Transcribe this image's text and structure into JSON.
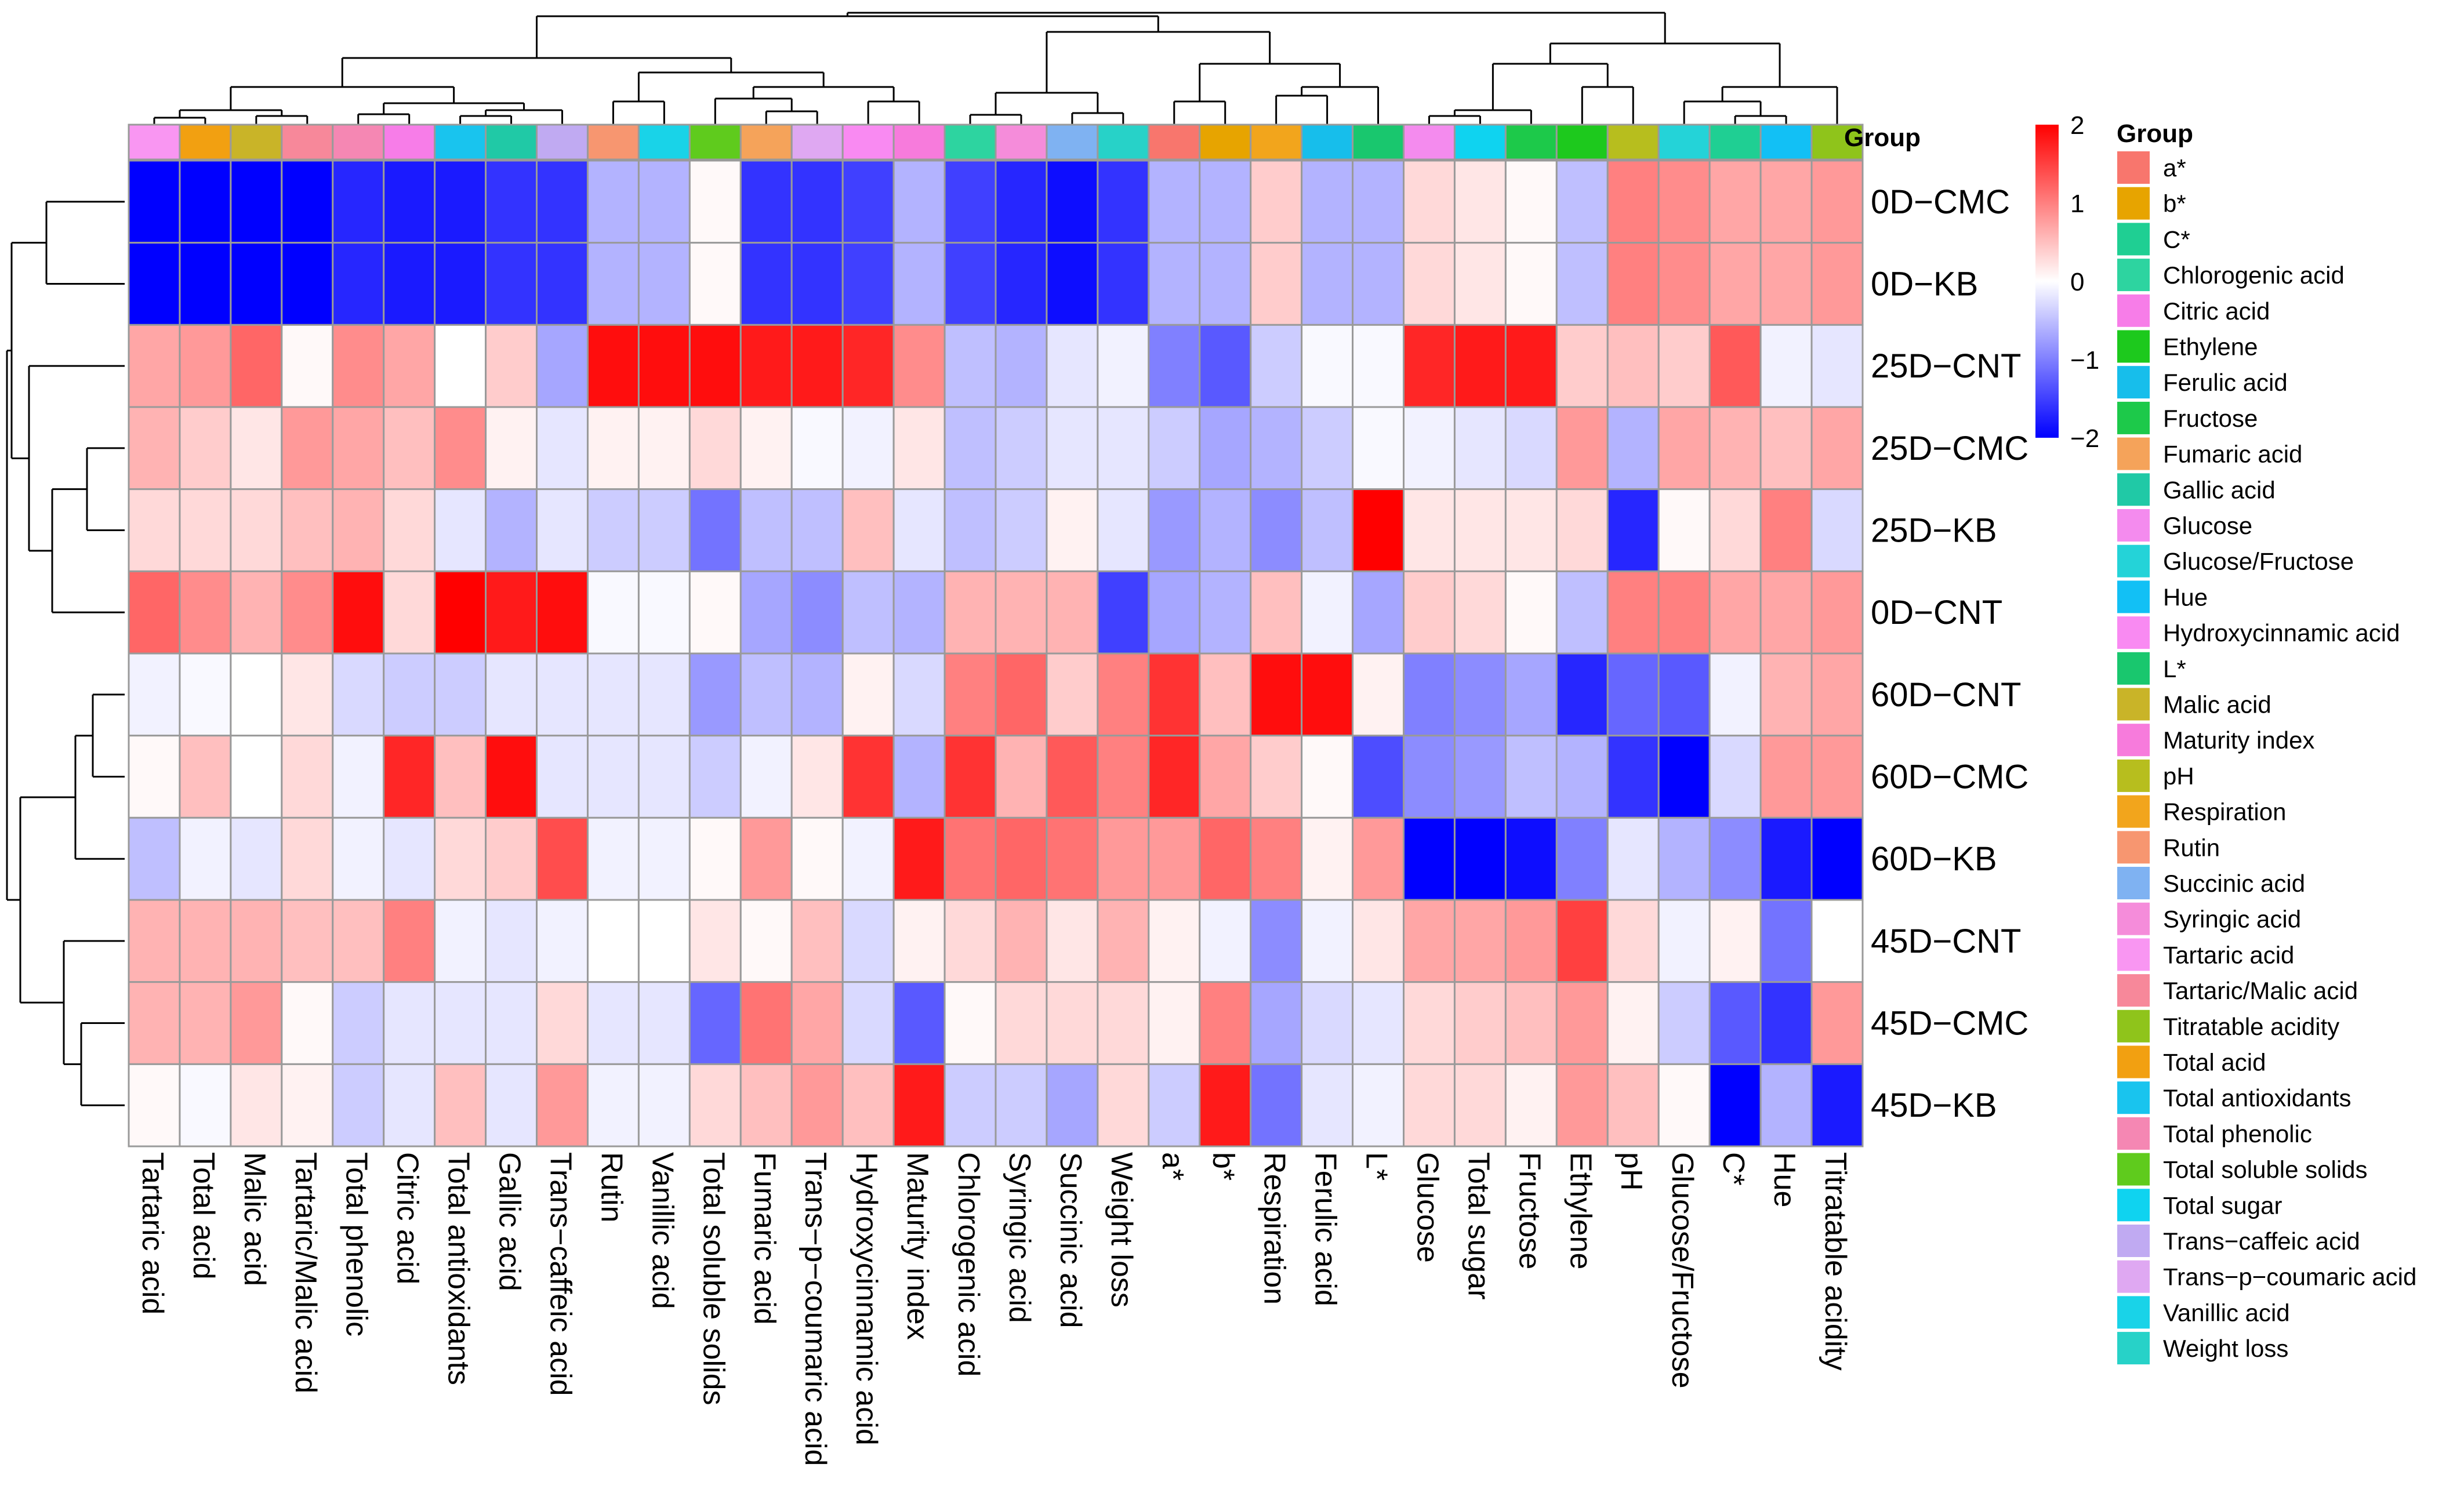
{
  "chart_data": {
    "type": "heatmap",
    "title": "",
    "annotation_title": "Group",
    "scale": {
      "range": [
        -2,
        2
      ],
      "ticks": [
        2,
        1,
        0,
        -1,
        -2
      ],
      "tick_labels": [
        "2",
        "1",
        "0",
        "−1",
        "−2"
      ],
      "colors": {
        "low": "#0000FF",
        "mid": "#FFFFFF",
        "high": "#FF0000"
      }
    },
    "rows": [
      "0D−CMC",
      "0D−KB",
      "25D−CNT",
      "25D−CMC",
      "25D−KB",
      "0D−CNT",
      "60D−CNT",
      "60D−CMC",
      "60D−KB",
      "45D−CNT",
      "45D−CMC",
      "45D−KB"
    ],
    "columns": [
      "Tartaric acid",
      "Total acid",
      "Malic acid",
      "Tartaric/Malic acid",
      "Total phenolic",
      "Citric acid",
      "Total antioxidants",
      "Gallic acid",
      "Trans−caffeic acid",
      "Rutin",
      "Vanillic acid",
      "Total soluble solids",
      "Fumaric acid",
      "Trans−p−coumaric acid",
      "Hydroxycinnamic acid",
      "Maturity index",
      "Chlorogenic acid",
      "Syringic acid",
      "Succinic acid",
      "Weight loss",
      "a*",
      "b*",
      "Respiration",
      "Ferulic acid",
      "L*",
      "Glucose",
      "Total sugar",
      "Fructose",
      "Ethylene",
      "pH",
      "Glucose/Fructose",
      "C*",
      "Hue",
      "Titratable acidity"
    ],
    "values": [
      [
        -2.0,
        -2.0,
        -2.0,
        -2.0,
        -1.7,
        -1.8,
        -1.8,
        -1.6,
        -1.6,
        -0.6,
        -0.6,
        0.05,
        -1.6,
        -1.6,
        -1.5,
        -0.6,
        -1.5,
        -1.7,
        -1.9,
        -1.6,
        -0.6,
        -0.6,
        0.4,
        -0.6,
        -0.6,
        0.3,
        0.2,
        0.05,
        -0.5,
        1.0,
        0.9,
        0.7,
        0.7,
        0.8
      ],
      [
        -2.0,
        -2.0,
        -2.0,
        -2.0,
        -1.7,
        -1.8,
        -1.8,
        -1.6,
        -1.6,
        -0.6,
        -0.6,
        0.05,
        -1.6,
        -1.6,
        -1.5,
        -0.6,
        -1.5,
        -1.7,
        -1.9,
        -1.6,
        -0.6,
        -0.6,
        0.4,
        -0.6,
        -0.6,
        0.3,
        0.2,
        0.05,
        -0.5,
        1.0,
        0.9,
        0.7,
        0.7,
        0.8
      ],
      [
        0.7,
        0.8,
        1.2,
        0.05,
        0.9,
        0.7,
        0.0,
        0.4,
        -0.7,
        1.9,
        1.9,
        1.9,
        1.8,
        1.8,
        1.7,
        0.9,
        -0.5,
        -0.6,
        -0.2,
        -0.1,
        -1.0,
        -1.3,
        -0.4,
        -0.05,
        -0.05,
        1.7,
        1.8,
        1.8,
        0.4,
        0.5,
        0.4,
        1.3,
        -0.1,
        -0.2
      ],
      [
        0.6,
        0.4,
        0.2,
        0.8,
        0.7,
        0.5,
        0.9,
        0.1,
        -0.2,
        0.1,
        0.1,
        0.3,
        0.1,
        -0.05,
        -0.1,
        0.2,
        -0.5,
        -0.4,
        -0.2,
        -0.2,
        -0.4,
        -0.7,
        -0.6,
        -0.4,
        -0.05,
        -0.1,
        -0.2,
        -0.3,
        0.8,
        -0.6,
        0.7,
        0.6,
        0.5,
        0.7
      ],
      [
        0.3,
        0.3,
        0.3,
        0.5,
        0.6,
        0.3,
        -0.2,
        -0.6,
        -0.2,
        -0.4,
        -0.4,
        -1.1,
        -0.5,
        -0.5,
        0.5,
        -0.2,
        -0.5,
        -0.4,
        0.1,
        -0.2,
        -0.8,
        -0.6,
        -0.9,
        -0.5,
        2.0,
        0.2,
        0.2,
        0.2,
        0.3,
        -1.7,
        0.05,
        0.3,
        1.0,
        -0.3
      ],
      [
        1.2,
        0.9,
        0.6,
        0.9,
        1.9,
        0.3,
        2.0,
        1.8,
        1.9,
        -0.05,
        -0.05,
        0.05,
        -0.7,
        -0.9,
        -0.5,
        -0.6,
        0.6,
        0.6,
        0.6,
        -1.5,
        -0.7,
        -0.6,
        0.5,
        -0.1,
        -0.7,
        0.4,
        0.3,
        0.05,
        -0.5,
        1.0,
        1.0,
        0.7,
        0.7,
        0.8
      ],
      [
        -0.1,
        -0.05,
        0.0,
        0.2,
        -0.3,
        -0.4,
        -0.4,
        -0.2,
        -0.2,
        -0.2,
        -0.2,
        -0.8,
        -0.5,
        -0.6,
        0.1,
        -0.3,
        1.0,
        1.2,
        0.4,
        1.0,
        1.6,
        0.5,
        1.9,
        1.9,
        0.1,
        -1.0,
        -0.9,
        -0.7,
        -1.7,
        -1.2,
        -1.3,
        -0.1,
        0.6,
        0.7
      ],
      [
        0.05,
        0.5,
        0.0,
        0.3,
        -0.1,
        1.7,
        0.5,
        1.9,
        -0.2,
        -0.2,
        -0.2,
        -0.4,
        -0.1,
        0.2,
        1.6,
        -0.6,
        1.6,
        0.6,
        1.3,
        1.0,
        1.7,
        0.7,
        0.4,
        0.05,
        -1.4,
        -0.9,
        -0.8,
        -0.5,
        -0.6,
        -1.6,
        -2.0,
        -0.3,
        0.8,
        0.8
      ],
      [
        -0.5,
        -0.1,
        -0.2,
        0.3,
        -0.1,
        -0.2,
        0.3,
        0.4,
        1.4,
        -0.1,
        -0.1,
        0.05,
        0.8,
        0.05,
        -0.1,
        1.8,
        1.1,
        1.2,
        1.1,
        0.8,
        0.8,
        1.2,
        1.0,
        0.1,
        0.8,
        -2.0,
        -2.0,
        -1.9,
        -1.0,
        -0.2,
        -0.6,
        -0.9,
        -1.8,
        -2.0
      ],
      [
        0.6,
        0.6,
        0.6,
        0.5,
        0.5,
        1.0,
        -0.1,
        -0.2,
        -0.1,
        0.0,
        0.0,
        0.2,
        0.05,
        0.5,
        -0.3,
        0.1,
        0.3,
        0.6,
        0.2,
        0.6,
        0.1,
        -0.1,
        -0.9,
        -0.1,
        0.2,
        0.7,
        0.7,
        0.8,
        1.5,
        0.3,
        -0.1,
        0.1,
        -1.1,
        0.0
      ],
      [
        0.6,
        0.6,
        0.8,
        0.05,
        -0.4,
        -0.2,
        -0.2,
        -0.2,
        0.3,
        -0.2,
        -0.2,
        -1.2,
        1.1,
        0.7,
        -0.3,
        -1.3,
        0.05,
        0.3,
        0.3,
        0.3,
        0.1,
        1.0,
        -0.7,
        -0.3,
        -0.2,
        0.3,
        0.4,
        0.5,
        0.8,
        0.1,
        -0.4,
        -1.3,
        -1.6,
        0.8
      ],
      [
        0.05,
        -0.05,
        0.2,
        0.1,
        -0.4,
        -0.2,
        0.5,
        -0.2,
        0.8,
        -0.1,
        -0.1,
        0.3,
        0.5,
        0.8,
        0.5,
        1.8,
        -0.4,
        -0.4,
        -0.7,
        0.3,
        -0.4,
        1.8,
        -1.1,
        -0.2,
        -0.1,
        0.3,
        0.3,
        0.1,
        0.8,
        0.5,
        0.05,
        -2.0,
        -0.6,
        -1.8
      ]
    ],
    "legend": [
      {
        "name": "a*",
        "color": "#F8766D"
      },
      {
        "name": "b*",
        "color": "#E7A400"
      },
      {
        "name": "C*",
        "color": "#1FCF93"
      },
      {
        "name": "Chlorogenic acid",
        "color": "#2DD4A0"
      },
      {
        "name": "Citric acid",
        "color": "#F77DE8"
      },
      {
        "name": "Ethylene",
        "color": "#1DC91D"
      },
      {
        "name": "Ferulic acid",
        "color": "#17BEEB"
      },
      {
        "name": "Fructose",
        "color": "#1DC94A"
      },
      {
        "name": "Fumaric acid",
        "color": "#F5A35A"
      },
      {
        "name": "Gallic acid",
        "color": "#20C9A6"
      },
      {
        "name": "Glucose",
        "color": "#F48BEE"
      },
      {
        "name": "Glucose/Fructose",
        "color": "#24D3D8"
      },
      {
        "name": "Hue",
        "color": "#12C0F5"
      },
      {
        "name": "Hydroxycinnamic acid",
        "color": "#F98AF2"
      },
      {
        "name": "L*",
        "color": "#19C76E"
      },
      {
        "name": "Malic acid",
        "color": "#C9B428"
      },
      {
        "name": "Maturity index",
        "color": "#F77BDC"
      },
      {
        "name": "pH",
        "color": "#B7BE1E"
      },
      {
        "name": "Respiration",
        "color": "#F2A51C"
      },
      {
        "name": "Rutin",
        "color": "#F79670"
      },
      {
        "name": "Succinic acid",
        "color": "#7FB2F2"
      },
      {
        "name": "Syringic acid",
        "color": "#F58CDA"
      },
      {
        "name": "Tartaric acid",
        "color": "#F996F2"
      },
      {
        "name": "Tartaric/Malic acid",
        "color": "#F7889A"
      },
      {
        "name": "Titratable acidity",
        "color": "#8FC41B"
      },
      {
        "name": "Total acid",
        "color": "#F2A011"
      },
      {
        "name": "Total antioxidants",
        "color": "#19C4EE"
      },
      {
        "name": "Total phenolic",
        "color": "#F587B3"
      },
      {
        "name": "Total soluble solids",
        "color": "#5FCB1D"
      },
      {
        "name": "Total sugar",
        "color": "#0FD3F0"
      },
      {
        "name": "Trans−caffeic acid",
        "color": "#C0AAF2"
      },
      {
        "name": "Trans−p−coumaric acid",
        "color": "#DFA8F2"
      },
      {
        "name": "Vanillic acid",
        "color": "#19D3E8"
      },
      {
        "name": "Weight loss",
        "color": "#27D2C8"
      }
    ]
  }
}
